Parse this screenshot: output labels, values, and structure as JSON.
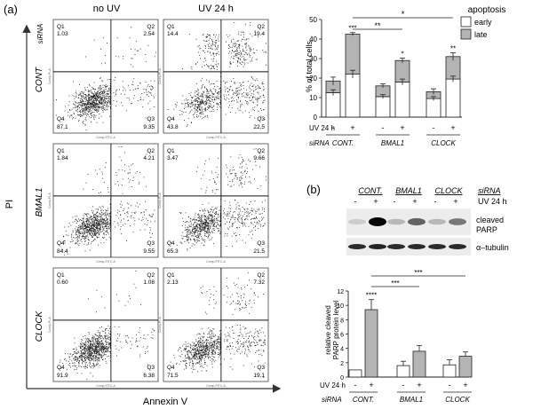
{
  "panel_a": {
    "label": "(a)",
    "col_headers": [
      "no UV",
      "UV 24 h"
    ],
    "sirna_tag": "siRNA",
    "row_labels": [
      "CONT",
      "BMAL1",
      "CLOCK"
    ],
    "y_axis_label": "PI",
    "x_axis_label": "Annexin V",
    "plot_y_axis_text": "Comp-PI-A",
    "plot_x_axis_text": "Comp-FITC-A",
    "quadrant_names": [
      "Q1",
      "Q2",
      "Q4",
      "Q3"
    ],
    "plots": [
      {
        "name": "cont-no-uv",
        "q1": "1.03",
        "q2": "2.54",
        "q4": "87.1",
        "q3": "9.35"
      },
      {
        "name": "cont-uv",
        "q1": "14.4",
        "q2": "19.4",
        "q4": "43.8",
        "q3": "22.5"
      },
      {
        "name": "bmal1-no-uv",
        "q1": "1.84",
        "q2": "4.21",
        "q4": "84.4",
        "q3": "9.55"
      },
      {
        "name": "bmal1-uv",
        "q1": "3.47",
        "q2": "9.66",
        "q4": "65.3",
        "q3": "21.5"
      },
      {
        "name": "clock-no-uv",
        "q1": "0.60",
        "q2": "1.08",
        "q4": "91.9",
        "q3": "6.38"
      },
      {
        "name": "clock-uv",
        "q1": "2.13",
        "q2": "7.32",
        "q4": "71.5",
        "q3": "19.1"
      }
    ]
  },
  "panel_b": {
    "label": "(b)",
    "blot_groups": [
      "CONT.",
      "BMAL1",
      "CLOCK"
    ],
    "blot_sirna": "siRNA",
    "blot_uv": "UV 24 h",
    "blot_signs": [
      "-",
      "+",
      "-",
      "+",
      "-",
      "+"
    ],
    "band_labels": [
      "cleaved",
      "PARP",
      "α–tubulin"
    ],
    "parp_intensity": [
      0.05,
      1.0,
      0.15,
      0.55,
      0.15,
      0.45
    ],
    "tubulin_intensity": [
      0.85,
      0.9,
      0.85,
      0.85,
      0.85,
      0.85
    ]
  },
  "bottom_row_labels": {
    "uv": "UV 24 h",
    "sirna": "siRNA",
    "signs": [
      "-",
      "+",
      "-",
      "+",
      "-",
      "+"
    ],
    "groups": [
      "CONT.",
      "BMAL1",
      "CLOCK"
    ]
  },
  "chart_data": [
    {
      "type": "bar",
      "stacked": true,
      "ylabel": "% of total cells",
      "ylim": [
        0,
        50
      ],
      "yticks": [
        0,
        10,
        20,
        30,
        40,
        50
      ],
      "legend_title": "apoptosis",
      "legend_placement": "right",
      "categories": [
        "CONT. -",
        "CONT. +",
        "BMAL1 -",
        "BMAL1 +",
        "CLOCK -",
        "CLOCK +"
      ],
      "series": [
        {
          "name": "early",
          "values": [
            12.5,
            22,
            10.5,
            18,
            9.5,
            19.5
          ],
          "errors": [
            1.5,
            2,
            1,
            1.5,
            1,
            1.5
          ],
          "color": "#ffffff"
        },
        {
          "name": "late",
          "values": [
            6,
            20.5,
            5.5,
            11,
            3.5,
            11.5
          ],
          "errors": [
            2,
            0.8,
            1,
            1.2,
            1.5,
            2
          ],
          "color": "#b4b4b4"
        }
      ],
      "significance": [
        "",
        "***",
        "",
        "*",
        "",
        "**"
      ],
      "comparisons": [
        {
          "text": "*"
        },
        {
          "text": "**"
        }
      ]
    },
    {
      "type": "bar",
      "ylabel": "relative cleaved PARP protein level",
      "ylim": [
        0,
        12
      ],
      "yticks": [
        0,
        2,
        4,
        6,
        8,
        10,
        12
      ],
      "categories": [
        "CONT. -",
        "CONT. +",
        "BMAL1 -",
        "BMAL1 +",
        "CLOCK -",
        "CLOCK +"
      ],
      "values": [
        1,
        9.4,
        1.6,
        3.6,
        1.7,
        2.9
      ],
      "errors": [
        0,
        1.4,
        0.6,
        0.8,
        0.7,
        0.6
      ],
      "colors": [
        "#ffffff",
        "#b4b4b4",
        "#ffffff",
        "#b4b4b4",
        "#ffffff",
        "#b4b4b4"
      ],
      "significance": [
        "",
        "****",
        "",
        "",
        "",
        ""
      ],
      "comparisons": [
        {
          "text": "***"
        },
        {
          "text": "***"
        }
      ]
    }
  ]
}
